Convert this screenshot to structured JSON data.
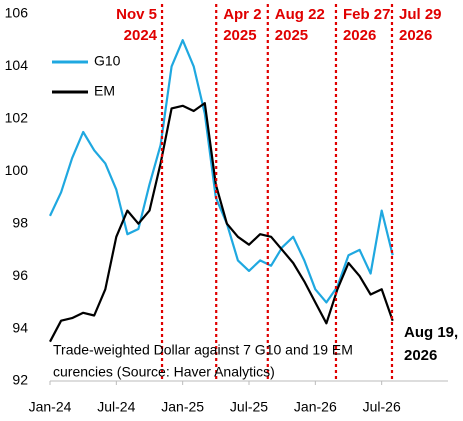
{
  "chart_data": {
    "type": "line",
    "x": [
      "2024-01",
      "2024-02",
      "2024-03",
      "2024-04",
      "2024-05",
      "2024-06",
      "2024-07",
      "2024-08",
      "2024-09",
      "2024-10",
      "2024-11",
      "2024-12",
      "2025-01",
      "2025-02",
      "2025-03",
      "2025-04",
      "2025-05",
      "2025-06",
      "2025-07",
      "2025-08",
      "2025-09",
      "2025-10",
      "2025-11",
      "2025-12",
      "2026-01",
      "2026-02",
      "2026-03",
      "2026-04",
      "2026-05",
      "2026-06",
      "2026-07",
      "2026-08"
    ],
    "series": [
      {
        "name": "G10",
        "color": "#1fa8e0",
        "values": [
          98.3,
          99.2,
          100.5,
          101.5,
          100.8,
          100.3,
          99.3,
          97.6,
          97.8,
          99.5,
          101,
          104,
          105,
          104,
          102.2,
          99,
          98,
          96.6,
          96.2,
          96.6,
          96.4,
          97.1,
          97.5,
          96.6,
          95.5,
          95,
          95.6,
          96.8,
          97,
          96.1,
          98.5,
          96.8
        ]
      },
      {
        "name": "EM",
        "color": "#000000",
        "values": [
          93.5,
          94.3,
          94.4,
          94.6,
          94.5,
          95.5,
          97.5,
          98.5,
          98,
          98.5,
          100.3,
          102.4,
          102.5,
          102.3,
          102.6,
          99.5,
          98,
          97.5,
          97.2,
          97.6,
          97.5,
          97,
          96.5,
          95.8,
          95,
          94.2,
          95.5,
          96.5,
          96,
          95.3,
          95.5,
          94.3
        ]
      }
    ],
    "xlim": [
      "2024-01",
      "2027-01"
    ],
    "xticks": [
      {
        "value": "2024-01",
        "label": "Jan-24"
      },
      {
        "value": "2024-07",
        "label": "Jul-24"
      },
      {
        "value": "2025-01",
        "label": "Jan-25"
      },
      {
        "value": "2025-07",
        "label": "Jul-25"
      },
      {
        "value": "2026-01",
        "label": "Jan-26"
      },
      {
        "value": "2026-07",
        "label": "Jul-26"
      }
    ],
    "ylim": [
      92,
      106
    ],
    "yticks": [
      92,
      94,
      96,
      98,
      100,
      102,
      104,
      106
    ],
    "grid": false,
    "legend": "upper left",
    "annotations": [
      {
        "x": "2024-11-05",
        "label": [
          "Nov 5",
          "2024"
        ]
      },
      {
        "x": "2025-04-02",
        "label": [
          "Apr 2",
          "2025"
        ]
      },
      {
        "x": "2025-08-22",
        "label": [
          "Aug 22",
          "2025"
        ]
      },
      {
        "x": "2026-02-27",
        "label": [
          "Feb 27",
          "2026"
        ]
      },
      {
        "x": "2026-07-29",
        "label": [
          "Jul 29",
          "2026"
        ]
      }
    ],
    "annotation_color": "#e00000",
    "end_label": [
      "Aug 19,",
      "2026"
    ],
    "note": [
      "Trade-weighted Dollar against 7 G10 and 19 EM",
      "curencies (Source: Haver Analytics)"
    ]
  }
}
